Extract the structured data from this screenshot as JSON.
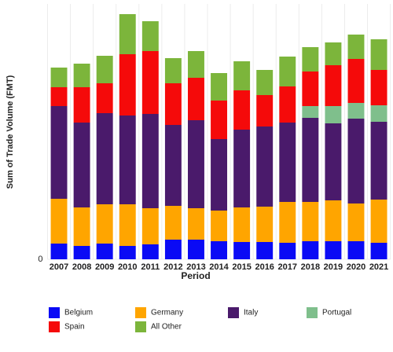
{
  "chart_data": {
    "type": "stacked_bar",
    "x_label": "Period",
    "y_label": "Sum of Trade Volume (FMT)",
    "categories": [
      "2007",
      "2008",
      "2009",
      "2010",
      "2011",
      "2012",
      "2013",
      "2014",
      "2015",
      "2016",
      "2017",
      "2018",
      "2019",
      "2020",
      "2021"
    ],
    "series": [
      {
        "name": "Belgium",
        "color": "#0a0af5",
        "values": [
          20,
          17,
          20,
          17,
          19,
          25,
          25,
          23,
          22,
          22,
          21,
          23,
          23,
          23,
          21
        ]
      },
      {
        "name": "Germany",
        "color": "#ffa500",
        "values": [
          57,
          49,
          50,
          53,
          46,
          43,
          40,
          39,
          44,
          45,
          52,
          50,
          52,
          48,
          55
        ]
      },
      {
        "name": "Italy",
        "color": "#4a1a6b",
        "values": [
          118,
          108,
          116,
          113,
          120,
          103,
          112,
          91,
          99,
          102,
          101,
          107,
          98,
          108,
          99
        ]
      },
      {
        "name": "Portugal",
        "color": "#7fbf8c",
        "values": [
          0,
          0,
          0,
          0,
          0,
          0,
          0,
          0,
          0,
          0,
          0,
          15,
          22,
          20,
          21
        ]
      },
      {
        "name": "Spain",
        "color": "#f50a0a",
        "values": [
          24,
          45,
          38,
          78,
          80,
          53,
          54,
          49,
          50,
          40,
          46,
          44,
          52,
          56,
          45
        ]
      },
      {
        "name": "All Other",
        "color": "#7cb53b",
        "values": [
          25,
          30,
          35,
          51,
          38,
          32,
          34,
          35,
          37,
          32,
          38,
          31,
          29,
          31,
          39
        ]
      }
    ],
    "ylim": [
      0,
      325
    ],
    "yticks": [
      0
    ],
    "grid": true,
    "legend": "bottom"
  }
}
